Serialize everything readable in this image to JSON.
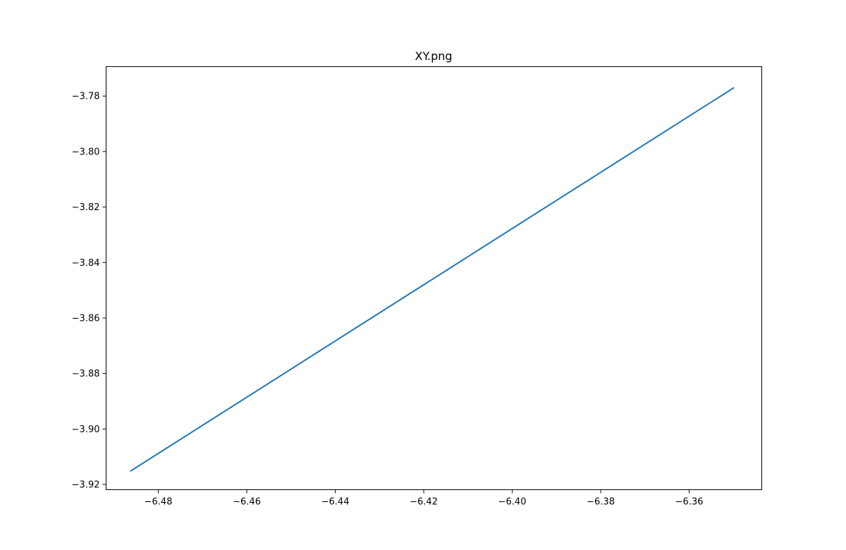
{
  "chart_data": {
    "type": "line",
    "title": "XY.png",
    "xlabel": "",
    "ylabel": "",
    "xlim": [
      -6.4918,
      -6.3436
    ],
    "ylim": [
      -3.9219,
      -3.7694
    ],
    "xticks": [
      -6.48,
      -6.46,
      -6.44,
      -6.42,
      -6.4,
      -6.38,
      -6.36
    ],
    "yticks": [
      -3.92,
      -3.9,
      -3.88,
      -3.86,
      -3.84,
      -3.82,
      -3.8,
      -3.78
    ],
    "xtick_labels": [
      "−6.48",
      "−6.46",
      "−6.44",
      "−6.42",
      "−6.40",
      "−6.38",
      "−6.36"
    ],
    "ytick_labels": [
      "−3.92",
      "−3.90",
      "−3.88",
      "−3.86",
      "−3.84",
      "−3.82",
      "−3.80",
      "−3.78"
    ],
    "grid": false,
    "series": [
      {
        "color": "#1f77b4",
        "x": [
          -6.4862,
          -6.35
        ],
        "y": [
          -3.9151,
          -3.7771
        ]
      }
    ]
  }
}
